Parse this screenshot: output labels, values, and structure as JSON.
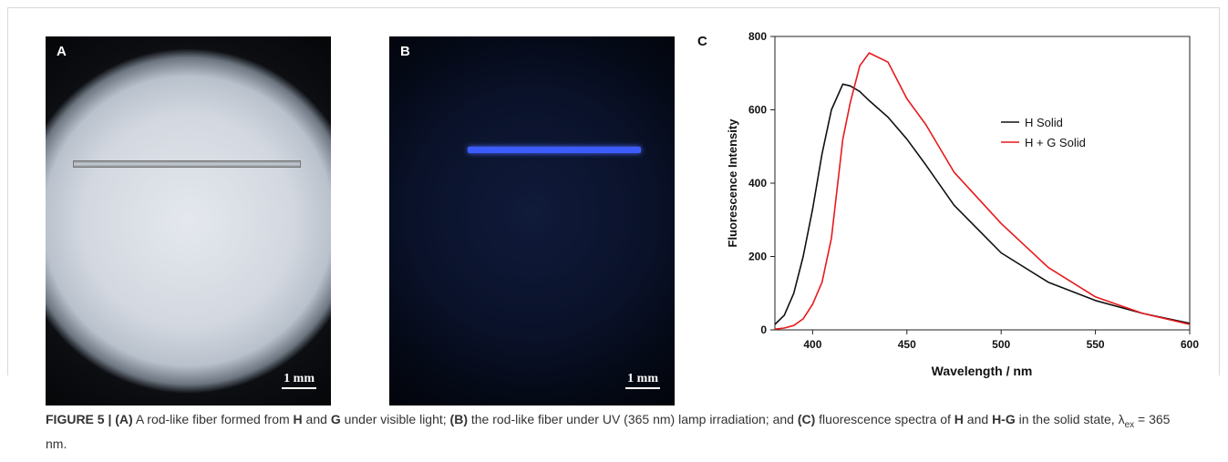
{
  "panels": [
    {
      "label": "A",
      "scale_bar": "1 mm"
    },
    {
      "label": "B",
      "scale_bar": "1 mm"
    }
  ],
  "chart_data": {
    "type": "line",
    "panel_label": "C",
    "x_label": "Wavelength / nm",
    "y_label": "Fluorescence Intensity",
    "x": [
      380,
      385,
      390,
      395,
      400,
      405,
      410,
      416,
      420,
      425,
      430,
      440,
      450,
      460,
      475,
      500,
      525,
      550,
      575,
      600
    ],
    "series": [
      {
        "name": "H Solid",
        "color": "#111111",
        "values": [
          15,
          40,
          100,
          200,
          330,
          480,
          600,
          670,
          665,
          650,
          625,
          580,
          520,
          450,
          340,
          210,
          130,
          80,
          45,
          18
        ]
      },
      {
        "name": "H + G Solid",
        "color": "#e8191c",
        "values": [
          2,
          5,
          12,
          30,
          70,
          130,
          250,
          520,
          620,
          720,
          755,
          730,
          630,
          560,
          430,
          290,
          170,
          90,
          45,
          15
        ]
      }
    ],
    "xlim": [
      380,
      600
    ],
    "xticks": [
      400,
      450,
      500,
      550,
      600
    ],
    "ylim": [
      0,
      800
    ],
    "yticks": [
      0,
      200,
      400,
      600,
      800
    ]
  },
  "caption": [
    {
      "text": "FIGURE 5 | (A)",
      "bold": true
    },
    {
      "text": " A rod-like fiber formed from ",
      "bold": false
    },
    {
      "text": "H",
      "bold": true
    },
    {
      "text": " and ",
      "bold": false
    },
    {
      "text": "G",
      "bold": true
    },
    {
      "text": " under visible light; ",
      "bold": false
    },
    {
      "text": "(B)",
      "bold": true
    },
    {
      "text": " the rod-like fiber under UV (365 nm) lamp irradiation; and ",
      "bold": false
    },
    {
      "text": "(C)",
      "bold": true
    },
    {
      "text": " fluorescence spectra of ",
      "bold": false
    },
    {
      "text": "H",
      "bold": true
    },
    {
      "text": " and ",
      "bold": false
    },
    {
      "text": "H-G",
      "bold": true
    },
    {
      "text": " in the solid state, λ",
      "bold": false
    },
    {
      "text": "ex",
      "bold": false,
      "sub": true
    },
    {
      "text": " = 365 nm.",
      "bold": false
    }
  ]
}
